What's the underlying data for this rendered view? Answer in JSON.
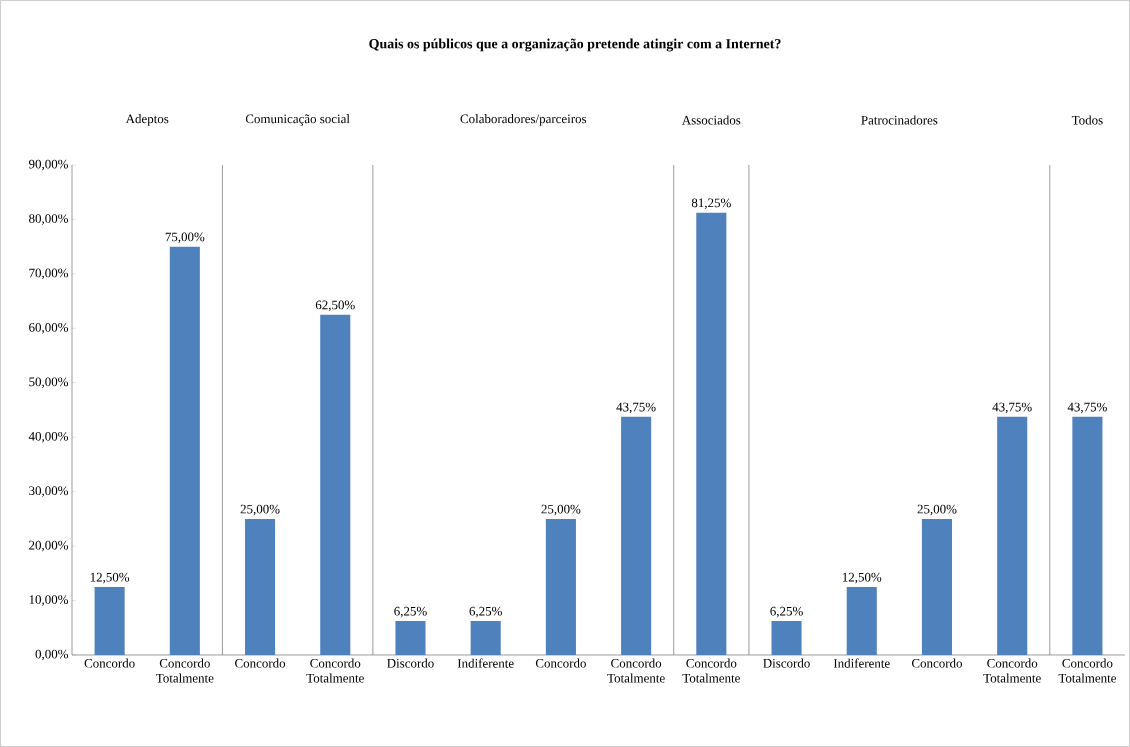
{
  "chart_data": {
    "type": "bar",
    "title": "Quais os públicos que a organização pretende atingir com a Internet?",
    "categories": [
      "Concordo",
      "Concordo Totalmente",
      "Concordo",
      "Concordo Totalmente",
      "Discordo",
      "Indiferente",
      "Concordo",
      "Concordo Totalmente",
      "Concordo Totalmente",
      "Discordo",
      "Indiferente",
      "Concordo",
      "Concordo Totalmente",
      "Concordo Totalmente"
    ],
    "values": [
      12.5,
      75,
      25,
      62.5,
      6.25,
      6.25,
      25,
      43.75,
      81.25,
      6.25,
      12.5,
      25,
      43.75,
      43.75
    ],
    "value_labels": [
      "12,50%",
      "75,00%",
      "25,00%",
      "62,50%",
      "6,25%",
      "6,25%",
      "25,00%",
      "43,75%",
      "81,25%",
      "6,25%",
      "12,50%",
      "25,00%",
      "43,75%",
      "43,75%"
    ],
    "color": "#4f81bd",
    "ylim": [
      0,
      90
    ],
    "yticks": [
      {
        "value": 0,
        "label": "0,00%"
      },
      {
        "value": 10,
        "label": "10,00%"
      },
      {
        "value": 20,
        "label": "20,00%"
      },
      {
        "value": 30,
        "label": "30,00%"
      },
      {
        "value": 40,
        "label": "40,00%"
      },
      {
        "value": 50,
        "label": "50,00%"
      },
      {
        "value": 60,
        "label": "60,00%"
      },
      {
        "value": 70,
        "label": "70,00%"
      },
      {
        "value": 80,
        "label": "80,00%"
      },
      {
        "value": 90,
        "label": "90,00%"
      }
    ],
    "annotations": [
      "Adeptos",
      "Comunicação social",
      "Colaboradores/parceiros",
      "Associados",
      "Patrocinadores",
      "Todos"
    ],
    "grid": false
  }
}
